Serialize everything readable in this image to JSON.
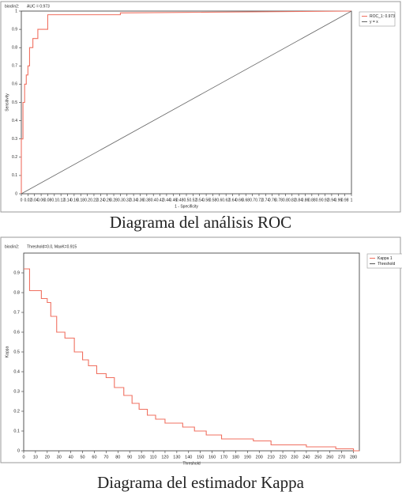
{
  "chart_data": [
    {
      "type": "line",
      "header": "bioclin2:",
      "subtitle": "AUC = 0.973",
      "xlabel": "1 - Specificity",
      "ylabel": "Sensitivity",
      "caption": "Diagrama del análisis ROC",
      "xlim": [
        0,
        1
      ],
      "ylim": [
        0,
        1
      ],
      "xticks": [
        0,
        0.02,
        0.04,
        0.06,
        0.08,
        0.1,
        0.12,
        0.14,
        0.16,
        0.18,
        0.2,
        0.22,
        0.24,
        0.26,
        0.28,
        0.3,
        0.32,
        0.34,
        0.36,
        0.38,
        0.4,
        0.42,
        0.44,
        0.46,
        0.48,
        0.5,
        0.52,
        0.54,
        0.56,
        0.58,
        0.6,
        0.62,
        0.64,
        0.66,
        0.68,
        0.7,
        0.72,
        0.74,
        0.76,
        0.78,
        0.8,
        0.82,
        0.84,
        0.86,
        0.88,
        0.9,
        0.92,
        0.94,
        0.96,
        0.98,
        1
      ],
      "yticks": [
        0,
        0.1,
        0.2,
        0.3,
        0.4,
        0.5,
        0.6,
        0.7,
        0.8,
        0.9,
        1
      ],
      "legend": "upper right",
      "series": [
        {
          "name": "ROC_1: 0.973",
          "color": "#f07060",
          "x": [
            0,
            0,
            0.005,
            0.005,
            0.01,
            0.01,
            0.015,
            0.015,
            0.02,
            0.02,
            0.025,
            0.025,
            0.035,
            0.035,
            0.05,
            0.05,
            0.08,
            0.08,
            0.3,
            0.3,
            1
          ],
          "values": [
            0,
            0.3,
            0.3,
            0.5,
            0.5,
            0.6,
            0.6,
            0.65,
            0.65,
            0.7,
            0.7,
            0.8,
            0.8,
            0.85,
            0.85,
            0.9,
            0.9,
            0.98,
            0.98,
            0.99,
            1
          ]
        },
        {
          "name": "y = x",
          "color": "#666666",
          "x": [
            0,
            1
          ],
          "values": [
            0,
            1
          ]
        }
      ]
    },
    {
      "type": "line",
      "header": "bioclin2:",
      "subtitle": "Threshold=0.0, MaxK=0.915",
      "xlabel": "Threshold",
      "ylabel": "Kappa",
      "caption": "Diagrama del estimador Kappa",
      "xlim": [
        0,
        285
      ],
      "ylim": [
        0,
        1
      ],
      "xticks": [
        0,
        10,
        20,
        30,
        40,
        50,
        60,
        70,
        80,
        90,
        100,
        110,
        120,
        130,
        140,
        150,
        160,
        170,
        180,
        190,
        200,
        210,
        220,
        230,
        240,
        250,
        260,
        270,
        280
      ],
      "yticks": [
        0,
        0.1,
        0.2,
        0.3,
        0.4,
        0.5,
        0.6,
        0.7,
        0.8,
        0.9
      ],
      "legend": "upper right",
      "series": [
        {
          "name": "Kappa 1",
          "color": "#f07060",
          "x": [
            0,
            5,
            5,
            15,
            15,
            20,
            20,
            23,
            23,
            28,
            28,
            35,
            35,
            43,
            43,
            50,
            50,
            55,
            55,
            62,
            62,
            70,
            70,
            77,
            77,
            85,
            85,
            92,
            92,
            98,
            98,
            105,
            105,
            112,
            112,
            120,
            120,
            135,
            135,
            145,
            145,
            155,
            155,
            168,
            168,
            195,
            195,
            210,
            210,
            240,
            240,
            265,
            265,
            280,
            280,
            285
          ],
          "values": [
            0.92,
            0.92,
            0.81,
            0.81,
            0.77,
            0.77,
            0.75,
            0.75,
            0.68,
            0.68,
            0.6,
            0.6,
            0.57,
            0.57,
            0.5,
            0.5,
            0.46,
            0.46,
            0.43,
            0.43,
            0.39,
            0.39,
            0.37,
            0.37,
            0.32,
            0.32,
            0.28,
            0.28,
            0.24,
            0.24,
            0.21,
            0.21,
            0.18,
            0.18,
            0.16,
            0.16,
            0.14,
            0.14,
            0.12,
            0.12,
            0.1,
            0.1,
            0.08,
            0.08,
            0.06,
            0.06,
            0.05,
            0.05,
            0.03,
            0.03,
            0.02,
            0.02,
            0.01,
            0.01,
            0,
            0
          ]
        },
        {
          "name": "Threshold",
          "color": "#555555",
          "x": [
            0,
            0
          ],
          "values": [
            0,
            0.915
          ]
        }
      ]
    }
  ]
}
